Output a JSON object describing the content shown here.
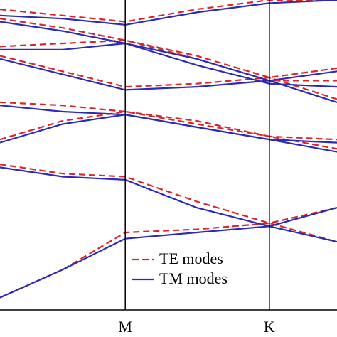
{
  "chart_data": {
    "type": "band-structure",
    "x": [
      0,
      0.5,
      1,
      1.57,
      2.15,
      2.69
    ],
    "xlim": [
      0,
      2.69
    ],
    "xticks": [
      {
        "value": 1,
        "label": "M"
      },
      {
        "value": 2.15,
        "label": "K"
      }
    ],
    "ylim": [
      0,
      1
    ],
    "legend": "lower center",
    "series": [
      {
        "name": "TE modes",
        "color": "#e02424",
        "dashed": true,
        "bands": [
          [
            0.04,
            0.13,
            0.25,
            0.26,
            0.28,
            0.33
          ],
          [
            0.47,
            0.44,
            0.43,
            0.35,
            0.28,
            0.22
          ],
          [
            0.55,
            0.61,
            0.64,
            0.61,
            0.56,
            0.52
          ],
          [
            0.67,
            0.66,
            0.64,
            0.6,
            0.56,
            0.55
          ],
          [
            0.82,
            0.77,
            0.72,
            0.73,
            0.75,
            0.68
          ],
          [
            0.85,
            0.86,
            0.87,
            0.81,
            0.74,
            0.74
          ],
          [
            0.94,
            0.91,
            0.87,
            0.82,
            0.75,
            0.78
          ],
          [
            0.97,
            0.95,
            0.93,
            0.97,
            1.0,
            1.0
          ]
        ]
      },
      {
        "name": "TM modes",
        "color": "#2b2bb8",
        "dashed": false,
        "bands": [
          [
            0.04,
            0.13,
            0.23,
            0.25,
            0.27,
            0.33
          ],
          [
            0.46,
            0.43,
            0.42,
            0.33,
            0.27,
            0.22
          ],
          [
            0.54,
            0.6,
            0.63,
            0.59,
            0.55,
            0.51
          ],
          [
            0.66,
            0.64,
            0.63,
            0.59,
            0.55,
            0.54
          ],
          [
            0.81,
            0.76,
            0.71,
            0.72,
            0.74,
            0.67
          ],
          [
            0.84,
            0.84,
            0.86,
            0.79,
            0.73,
            0.72
          ],
          [
            0.93,
            0.9,
            0.86,
            0.81,
            0.74,
            0.77
          ],
          [
            0.95,
            0.94,
            0.92,
            0.96,
            0.99,
            1.0
          ]
        ]
      }
    ]
  }
}
